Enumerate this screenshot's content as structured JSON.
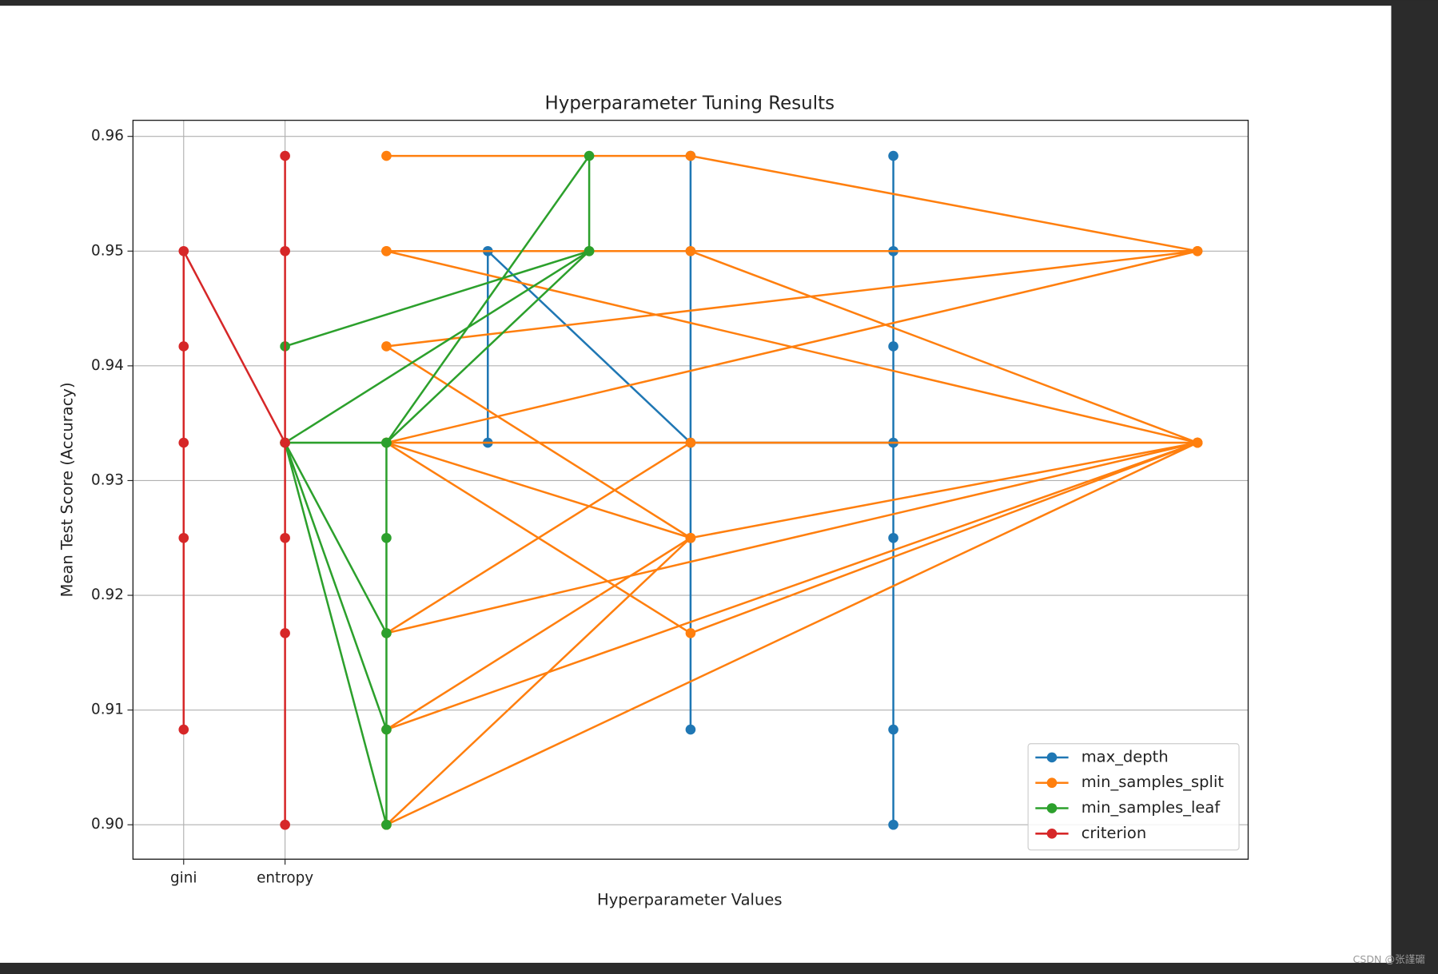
{
  "chart_data": {
    "type": "line",
    "title": "Hyperparameter Tuning Results",
    "xlabel": "Hyperparameter Values",
    "ylabel": "Mean Test Score (Accuracy)",
    "xlim": [
      -0.5,
      10.5
    ],
    "xticks": [
      {
        "value": 0,
        "label": "gini"
      },
      {
        "value": 1,
        "label": "entropy"
      }
    ],
    "ylim": [
      0.897,
      0.9614
    ],
    "yticks": [
      {
        "value": 0.9,
        "label": "0.90"
      },
      0.91,
      0.92,
      0.93,
      0.94,
      0.95,
      0.96
    ],
    "grid": true,
    "legend": "lower right",
    "series": [
      {
        "name": "max_depth",
        "color": "#1f77b4",
        "x": [
          3,
          3,
          5,
          5,
          5,
          5,
          5,
          5,
          7,
          7,
          7,
          7,
          7,
          7,
          7
        ],
        "values": [
          0.9333,
          0.95,
          0.9333,
          0.9583,
          0.925,
          0.9083,
          0.95,
          0.9333,
          0.9333,
          0.9583,
          0.95,
          0.9417,
          0.925,
          0.9083,
          0.9
        ]
      },
      {
        "name": "min_samples_split",
        "color": "#ff7f0e",
        "x": [
          2,
          5,
          10,
          2,
          5,
          2,
          10,
          2,
          10,
          2,
          5,
          10,
          2,
          5,
          10,
          2,
          5,
          10,
          2,
          5,
          2,
          10,
          2,
          10,
          5,
          2
        ],
        "values": [
          0.9583,
          0.9583,
          0.95,
          0.9417,
          0.925,
          0.9333,
          0.95,
          0.95,
          0.9333,
          0.9333,
          0.9167,
          0.9333,
          0.9167,
          0.9333,
          0.9333,
          0.9083,
          0.925,
          0.9333,
          0.9,
          0.925,
          0.9333,
          0.9333,
          0.9,
          0.9333,
          0.95,
          0.95
        ]
      },
      {
        "name": "min_samples_leaf",
        "color": "#2ca02c",
        "x": [
          1,
          4,
          4,
          2,
          4,
          1,
          2,
          2,
          2,
          1,
          2,
          2,
          1
        ],
        "values": [
          0.9417,
          0.95,
          0.9583,
          0.9333,
          0.95,
          0.9333,
          0.9333,
          0.925,
          0.9,
          0.9333,
          0.9083,
          0.9167,
          0.9333
        ]
      },
      {
        "name": "criterion",
        "color": "#d62728",
        "x": [
          0,
          0,
          0,
          0,
          0,
          1,
          1,
          1,
          1,
          1,
          1
        ],
        "values": [
          0.9083,
          0.925,
          0.9333,
          0.9417,
          0.95,
          0.9333,
          0.9583,
          0.95,
          0.925,
          0.9167,
          0.9
        ]
      }
    ]
  },
  "watermark": "CSDN @张謹礳"
}
